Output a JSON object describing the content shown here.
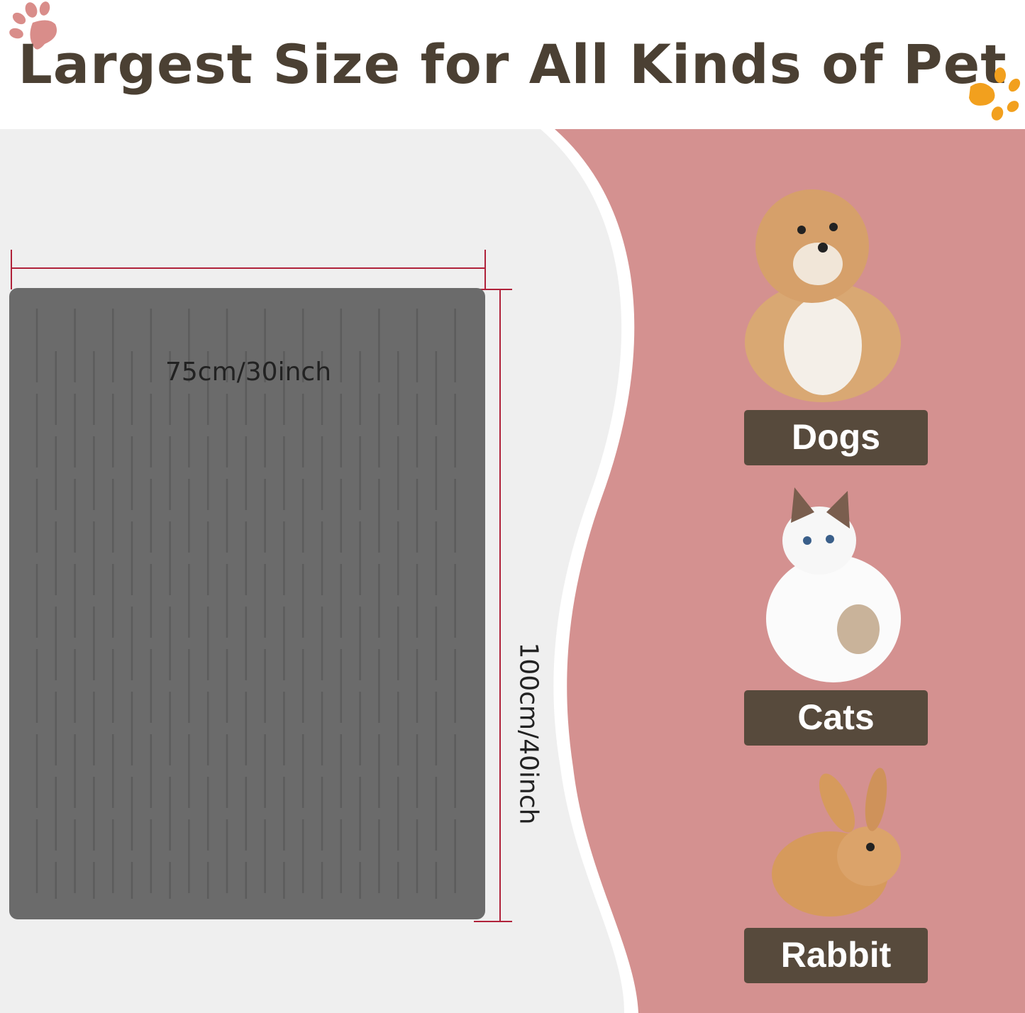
{
  "title": "Largest Size for All Kinds of Pet",
  "dimensions": {
    "width_label": "75cm/30inch",
    "height_label": "100cm/40inch"
  },
  "pets": [
    {
      "label": "Dogs",
      "icon": "dog-photo"
    },
    {
      "label": "Cats",
      "icon": "cat-photo"
    },
    {
      "label": "Rabbit",
      "icon": "rabbit-photo"
    }
  ],
  "colors": {
    "title": "#4b4033",
    "panel": "#d49190",
    "label_bg": "#574a3c",
    "mat": "#6b6b6b",
    "dimension_line": "#b0223a",
    "paw_left": "#d98d8a",
    "paw_right": "#f2a01e"
  }
}
